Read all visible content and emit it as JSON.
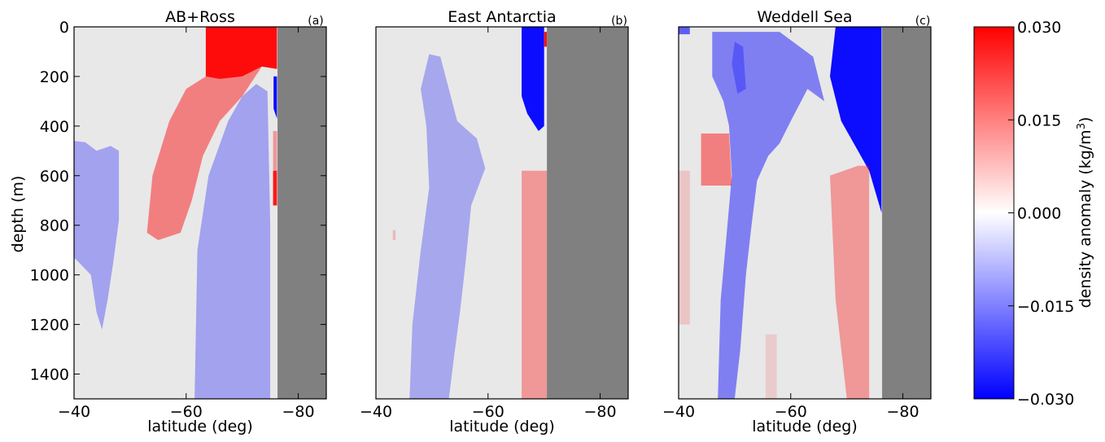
{
  "colors": {
    "land": "#808080",
    "missing": "#e8e8e8",
    "positive": "#ff0000",
    "negative": "#0000ff",
    "zero": "#ffffff"
  },
  "chart_data": [
    {
      "type": "heatmap",
      "title": "AB+Ross",
      "tag": "(a)",
      "xlabel": "latitude (deg)",
      "ylabel": "depth (m)",
      "xlim": [
        -40,
        -85
      ],
      "ylim": [
        1500,
        0
      ],
      "xticks": [
        -40,
        -60,
        -80
      ],
      "yticks": [
        0,
        200,
        400,
        600,
        800,
        1000,
        1200,
        1400
      ],
      "land_from_lat": -76.3,
      "regions": [
        {
          "sign": "positive",
          "intensity": 0.95,
          "points": [
            [
              -63.5,
              0
            ],
            [
              -76.2,
              0
            ],
            [
              -76.2,
              170
            ],
            [
              -73.5,
              160
            ],
            [
              -70,
              200
            ],
            [
              -66,
              210
            ],
            [
              -63.5,
              200
            ]
          ]
        },
        {
          "sign": "positive",
          "intensity": 0.45,
          "points": [
            [
              -63.5,
              200
            ],
            [
              -66,
              210
            ],
            [
              -70,
              200
            ],
            [
              -73.5,
              160
            ],
            [
              -70,
              280
            ],
            [
              -66,
              380
            ],
            [
              -63,
              520
            ],
            [
              -61,
              700
            ],
            [
              -59,
              830
            ],
            [
              -55,
              860
            ],
            [
              -53,
              830
            ],
            [
              -54,
              600
            ],
            [
              -57,
              380
            ],
            [
              -60,
              250
            ]
          ]
        },
        {
          "sign": "negative",
          "intensity": 0.3,
          "points": [
            [
              -72.5,
              230
            ],
            [
              -74.5,
              260
            ],
            [
              -75,
              800
            ],
            [
              -75,
              1500
            ],
            [
              -61.5,
              1500
            ],
            [
              -62,
              900
            ],
            [
              -64,
              600
            ],
            [
              -67.5,
              380
            ],
            [
              -70,
              280
            ]
          ]
        },
        {
          "sign": "negative",
          "intensity": 0.95,
          "points": [
            [
              -75.6,
              200
            ],
            [
              -76.2,
              200
            ],
            [
              -76.2,
              370
            ],
            [
              -75.6,
              330
            ]
          ]
        },
        {
          "sign": "positive",
          "intensity": 0.9,
          "points": [
            [
              -75.5,
              580
            ],
            [
              -76.2,
              580
            ],
            [
              -76.2,
              720
            ],
            [
              -75.5,
              720
            ]
          ]
        },
        {
          "sign": "positive",
          "intensity": 0.35,
          "points": [
            [
              -75.5,
              420
            ],
            [
              -76.2,
              420
            ],
            [
              -76.2,
              580
            ],
            [
              -75.5,
              580
            ]
          ]
        },
        {
          "sign": "negative",
          "intensity": 0.3,
          "points": [
            [
              -40,
              460
            ],
            [
              -42,
              465
            ],
            [
              -44,
              500
            ],
            [
              -46.5,
              480
            ],
            [
              -48,
              500
            ],
            [
              -48,
              780
            ],
            [
              -47,
              950
            ],
            [
              -46,
              1100
            ],
            [
              -45,
              1220
            ],
            [
              -44,
              1150
            ],
            [
              -43,
              1000
            ],
            [
              -40,
              930
            ]
          ]
        }
      ]
    },
    {
      "type": "heatmap",
      "title": "East Antarctia",
      "tag": "(b)",
      "xlabel": "latitude (deg)",
      "ylabel": "",
      "xlim": [
        -40,
        -85
      ],
      "ylim": [
        1500,
        0
      ],
      "xticks": [
        -40,
        -60,
        -80
      ],
      "yticks": [],
      "land_from_lat": -70.5,
      "regions": [
        {
          "sign": "negative",
          "intensity": 0.95,
          "points": [
            [
              -66,
              0
            ],
            [
              -70,
              0
            ],
            [
              -70,
              400
            ],
            [
              -69,
              420
            ],
            [
              -67,
              350
            ],
            [
              -66,
              280
            ]
          ]
        },
        {
          "sign": "positive",
          "intensity": 0.9,
          "points": [
            [
              -70,
              20
            ],
            [
              -70.5,
              20
            ],
            [
              -70.5,
              80
            ],
            [
              -70,
              80
            ]
          ]
        },
        {
          "sign": "negative",
          "intensity": 0.28,
          "points": [
            [
              -49.5,
              110
            ],
            [
              -51.5,
              120
            ],
            [
              -53,
              250
            ],
            [
              -54.5,
              380
            ],
            [
              -58,
              450
            ],
            [
              -59.5,
              570
            ],
            [
              -57,
              720
            ],
            [
              -56,
              950
            ],
            [
              -55,
              1150
            ],
            [
              -54,
              1320
            ],
            [
              -53,
              1500
            ],
            [
              -46,
              1500
            ],
            [
              -46.5,
              1200
            ],
            [
              -48,
              900
            ],
            [
              -49.5,
              650
            ],
            [
              -49,
              400
            ],
            [
              -48,
              250
            ]
          ]
        },
        {
          "sign": "positive",
          "intensity": 0.35,
          "points": [
            [
              -66,
              580
            ],
            [
              -70.5,
              580
            ],
            [
              -70.5,
              1500
            ],
            [
              -66,
              1500
            ]
          ]
        },
        {
          "sign": "positive",
          "intensity": 0.2,
          "points": [
            [
              -43,
              820
            ],
            [
              -43.5,
              820
            ],
            [
              -43.5,
              860
            ],
            [
              -43,
              860
            ]
          ]
        }
      ]
    },
    {
      "type": "heatmap",
      "title": "Weddell Sea",
      "tag": "(c)",
      "xlabel": "latitude (deg)",
      "ylabel": "",
      "xlim": [
        -40,
        -85
      ],
      "ylim": [
        1500,
        0
      ],
      "xticks": [
        -40,
        -60,
        -80
      ],
      "yticks": [],
      "land_from_lat": -76.3,
      "regions": [
        {
          "sign": "negative",
          "intensity": 0.95,
          "points": [
            [
              -68,
              0
            ],
            [
              -76.2,
              0
            ],
            [
              -76.2,
              750
            ],
            [
              -74,
              580
            ],
            [
              -72,
              500
            ],
            [
              -69,
              380
            ],
            [
              -67,
              200
            ]
          ]
        },
        {
          "sign": "negative",
          "intensity": 0.45,
          "points": [
            [
              -46,
              20
            ],
            [
              -58,
              20
            ],
            [
              -64,
              120
            ],
            [
              -66,
              300
            ],
            [
              -63,
              250
            ],
            [
              -60,
              380
            ],
            [
              -58,
              470
            ],
            [
              -56,
              520
            ],
            [
              -54,
              620
            ],
            [
              -53,
              800
            ],
            [
              -52,
              1000
            ],
            [
              -51,
              1300
            ],
            [
              -50,
              1500
            ],
            [
              -47,
              1500
            ],
            [
              -47.5,
              1100
            ],
            [
              -48.5,
              850
            ],
            [
              -49.5,
              600
            ],
            [
              -49,
              400
            ],
            [
              -48,
              300
            ],
            [
              -46,
              200
            ]
          ]
        },
        {
          "sign": "negative",
          "intensity": 0.6,
          "points": [
            [
              -40,
              0
            ],
            [
              -42,
              0
            ],
            [
              -42,
              30
            ],
            [
              -40,
              30
            ]
          ]
        },
        {
          "sign": "negative",
          "intensity": 0.3,
          "points": [
            [
              -50,
              60
            ],
            [
              -51.5,
              80
            ],
            [
              -52,
              250
            ],
            [
              -50.5,
              270
            ],
            [
              -49.5,
              150
            ]
          ]
        },
        {
          "sign": "positive",
          "intensity": 0.45,
          "points": [
            [
              -44,
              430
            ],
            [
              -49,
              430
            ],
            [
              -49.5,
              640
            ],
            [
              -44,
              640
            ]
          ]
        },
        {
          "sign": "positive",
          "intensity": 0.15,
          "points": [
            [
              -40,
              580
            ],
            [
              -42,
              580
            ],
            [
              -42,
              1200
            ],
            [
              -40,
              1200
            ]
          ]
        },
        {
          "sign": "positive",
          "intensity": 0.35,
          "points": [
            [
              -67,
              600
            ],
            [
              -72,
              560
            ],
            [
              -74,
              560
            ],
            [
              -74,
              1500
            ],
            [
              -70,
              1500
            ],
            [
              -68,
              1100
            ]
          ]
        },
        {
          "sign": "positive",
          "intensity": 0.12,
          "points": [
            [
              -55.5,
              1240
            ],
            [
              -57.5,
              1240
            ],
            [
              -57.5,
              1500
            ],
            [
              -55.5,
              1500
            ]
          ]
        }
      ]
    }
  ],
  "colorbar": {
    "label_prefix": "density anomaly (kg/m",
    "label_sup": "3",
    "label_suffix": ")",
    "ticks": [
      {
        "value": 0.03,
        "label": "0.030"
      },
      {
        "value": 0.015,
        "label": "0.015"
      },
      {
        "value": 0.0,
        "label": "0.000"
      },
      {
        "value": -0.015,
        "label": "−0.015"
      },
      {
        "value": -0.03,
        "label": "−0.030"
      }
    ],
    "range": [
      -0.03,
      0.03
    ]
  }
}
